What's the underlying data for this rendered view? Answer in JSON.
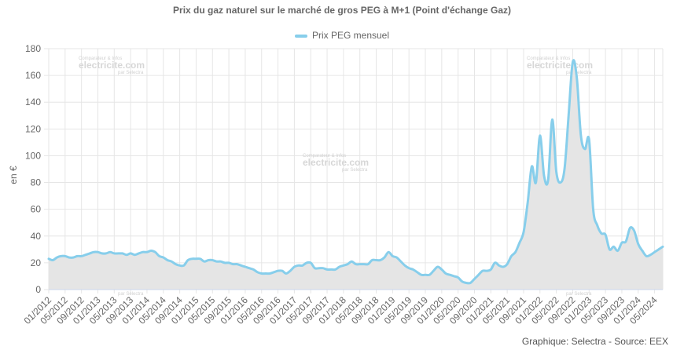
{
  "chart_data": {
    "type": "area",
    "title": "Prix du gaz naturel sur le marché de gros PEG à M+1 (Point d'échange Gaz)",
    "ylabel": "en €",
    "ylim": [
      0,
      180
    ],
    "yticks": [
      0,
      20,
      40,
      60,
      80,
      100,
      120,
      140,
      160,
      180
    ],
    "grid": true,
    "legend_position": "top",
    "line_color": "#87CEEB",
    "fill_color": "#E5E5E5",
    "x_tick_labels": [
      "01/2012",
      "05/2012",
      "09/2012",
      "01/2013",
      "05/2013",
      "09/2013",
      "01/2014",
      "05/2014",
      "09/2014",
      "01/2015",
      "05/2015",
      "09/2015",
      "01/2016",
      "05/2016",
      "09/2016",
      "01/2017",
      "05/2017",
      "09/2017",
      "01/2018",
      "05/2018",
      "09/2018",
      "01/2019",
      "05/2019",
      "09/2019",
      "01/2020",
      "05/2020",
      "09/2020",
      "01/2021",
      "05/2021",
      "09/2021",
      "01/2022",
      "05/2022",
      "09/2022",
      "01/2023",
      "05/2023",
      "09/2023",
      "01/2024",
      "05/2024"
    ],
    "series": [
      {
        "name": "Prix PEG mensuel",
        "x": [
          "2012-01",
          "2012-02",
          "2012-03",
          "2012-04",
          "2012-05",
          "2012-06",
          "2012-07",
          "2012-08",
          "2012-09",
          "2012-10",
          "2012-11",
          "2012-12",
          "2013-01",
          "2013-02",
          "2013-03",
          "2013-04",
          "2013-05",
          "2013-06",
          "2013-07",
          "2013-08",
          "2013-09",
          "2013-10",
          "2013-11",
          "2013-12",
          "2014-01",
          "2014-02",
          "2014-03",
          "2014-04",
          "2014-05",
          "2014-06",
          "2014-07",
          "2014-08",
          "2014-09",
          "2014-10",
          "2014-11",
          "2014-12",
          "2015-01",
          "2015-02",
          "2015-03",
          "2015-04",
          "2015-05",
          "2015-06",
          "2015-07",
          "2015-08",
          "2015-09",
          "2015-10",
          "2015-11",
          "2015-12",
          "2016-01",
          "2016-02",
          "2016-03",
          "2016-04",
          "2016-05",
          "2016-06",
          "2016-07",
          "2016-08",
          "2016-09",
          "2016-10",
          "2016-11",
          "2016-12",
          "2017-01",
          "2017-02",
          "2017-03",
          "2017-04",
          "2017-05",
          "2017-06",
          "2017-07",
          "2017-08",
          "2017-09",
          "2017-10",
          "2017-11",
          "2017-12",
          "2018-01",
          "2018-02",
          "2018-03",
          "2018-04",
          "2018-05",
          "2018-06",
          "2018-07",
          "2018-08",
          "2018-09",
          "2018-10",
          "2018-11",
          "2018-12",
          "2019-01",
          "2019-02",
          "2019-03",
          "2019-04",
          "2019-05",
          "2019-06",
          "2019-07",
          "2019-08",
          "2019-09",
          "2019-10",
          "2019-11",
          "2019-12",
          "2020-01",
          "2020-02",
          "2020-03",
          "2020-04",
          "2020-05",
          "2020-06",
          "2020-07",
          "2020-08",
          "2020-09",
          "2020-10",
          "2020-11",
          "2020-12",
          "2021-01",
          "2021-02",
          "2021-03",
          "2021-04",
          "2021-05",
          "2021-06",
          "2021-07",
          "2021-08",
          "2021-09",
          "2021-10",
          "2021-11",
          "2021-12",
          "2022-01",
          "2022-02",
          "2022-03",
          "2022-04",
          "2022-05",
          "2022-06",
          "2022-07",
          "2022-08",
          "2022-09",
          "2022-10",
          "2022-11",
          "2022-12",
          "2023-01",
          "2023-02",
          "2023-03",
          "2023-04",
          "2023-05",
          "2023-06",
          "2023-07",
          "2023-08",
          "2023-09",
          "2023-10",
          "2023-11",
          "2023-12",
          "2024-01",
          "2024-02",
          "2024-03",
          "2024-04",
          "2024-05",
          "2024-06",
          "2024-07"
        ],
        "values": [
          23,
          22,
          24,
          25,
          25,
          24,
          24,
          25,
          25,
          26,
          27,
          28,
          28,
          27,
          27,
          28,
          27,
          27,
          27,
          26,
          27,
          26,
          27,
          28,
          28,
          29,
          28,
          25,
          24,
          22,
          21,
          19,
          18,
          18,
          22,
          23,
          23,
          23,
          21,
          22,
          22,
          21,
          21,
          20,
          20,
          19,
          19,
          18,
          17,
          16,
          15,
          13,
          12,
          12,
          12,
          13,
          14,
          14,
          12,
          14,
          17,
          18,
          18,
          20,
          20,
          16,
          16,
          16,
          15,
          15,
          15,
          17,
          18,
          19,
          21,
          19,
          19,
          19,
          19,
          22,
          22,
          22,
          24,
          28,
          25,
          24,
          21,
          18,
          16,
          15,
          13,
          11,
          11,
          11,
          14,
          17,
          15,
          12,
          11,
          10,
          9,
          6,
          5,
          5,
          8,
          11,
          14,
          14,
          15,
          20,
          18,
          17,
          19,
          25,
          28,
          35,
          43,
          65,
          92,
          80,
          115,
          85,
          82,
          127,
          88,
          80,
          90,
          130,
          170,
          158,
          115,
          105,
          112,
          60,
          48,
          42,
          41,
          30,
          32,
          29,
          35,
          36,
          46,
          44,
          34,
          29,
          25,
          26,
          28,
          30,
          32
        ]
      }
    ]
  },
  "watermark": {
    "line1": "Comparateur & Infos",
    "line2": "electricite.com",
    "line3": "par Selectra"
  },
  "credits": "Graphique: Selectra - Source: EEX"
}
